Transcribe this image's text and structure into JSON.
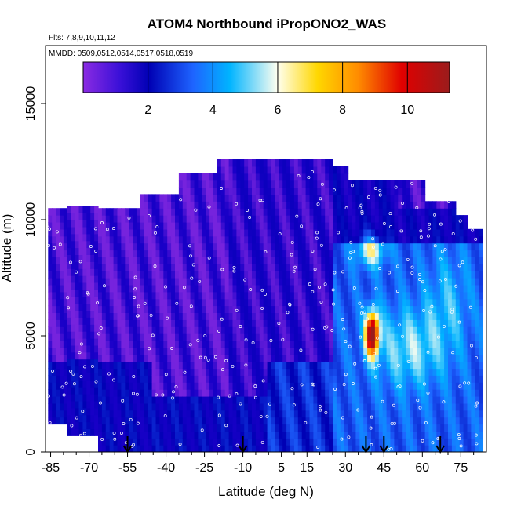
{
  "chart_data": {
    "type": "heatmap",
    "title": "ATOM4 Northbound iPropONO2_WAS",
    "subtitle_flights": "Flts: 7,8,9,10,11,12",
    "subtitle_dates": "MMDD: 0509,0512,0514,0517,0518,0519",
    "xlabel": "Latitude (deg N)",
    "ylabel": "Altitude (m)",
    "xlim": [
      -87,
      85
    ],
    "ylim": [
      0,
      17500
    ],
    "x_ticks": [
      -85,
      -70,
      -55,
      -40,
      -25,
      -10,
      5,
      15,
      30,
      45,
      60,
      75
    ],
    "x_tick_labels": [
      "-85",
      "-70",
      "-55",
      "-40",
      "-25",
      "-10",
      "5",
      "15",
      "30",
      "45",
      "60",
      "75"
    ],
    "y_ticks": [
      0,
      5000,
      10000,
      15000
    ],
    "y_tick_labels": [
      "0",
      "5000",
      "10000",
      "15000"
    ],
    "colorbar": {
      "min": 0,
      "max": 11.3,
      "ticks": [
        2,
        4,
        6,
        8,
        10
      ],
      "tick_labels": [
        "2",
        "4",
        "6",
        "8",
        "10"
      ],
      "colors": [
        "#8a2be2",
        "#1a00c8",
        "#0000b4",
        "#1e64ff",
        "#00b4ff",
        "#fffff0",
        "#ffd700",
        "#ff8c00",
        "#e00000",
        "#9b1c1c"
      ]
    },
    "profile_latitudes": [
      -55,
      -10,
      38,
      45,
      67
    ],
    "values_by_altitude": [
      {
        "alt": 12000,
        "lat": [
          -35,
          25
        ],
        "value": 1.0
      },
      {
        "alt": 10000,
        "lat": [
          -86,
          80
        ],
        "value": 0.8
      },
      {
        "alt": 8500,
        "lat": [
          35,
          45
        ],
        "value": 6.0
      },
      {
        "alt": 5000,
        "lat": [
          38,
          42
        ],
        "value": 10.0
      },
      {
        "alt": 5000,
        "lat": [
          -86,
          25
        ],
        "value": 1.6
      },
      {
        "alt": 2000,
        "lat": [
          10,
          80
        ],
        "value": 3.5
      },
      {
        "alt": 500,
        "lat": [
          -50,
          5
        ],
        "value": 2.0
      }
    ]
  }
}
